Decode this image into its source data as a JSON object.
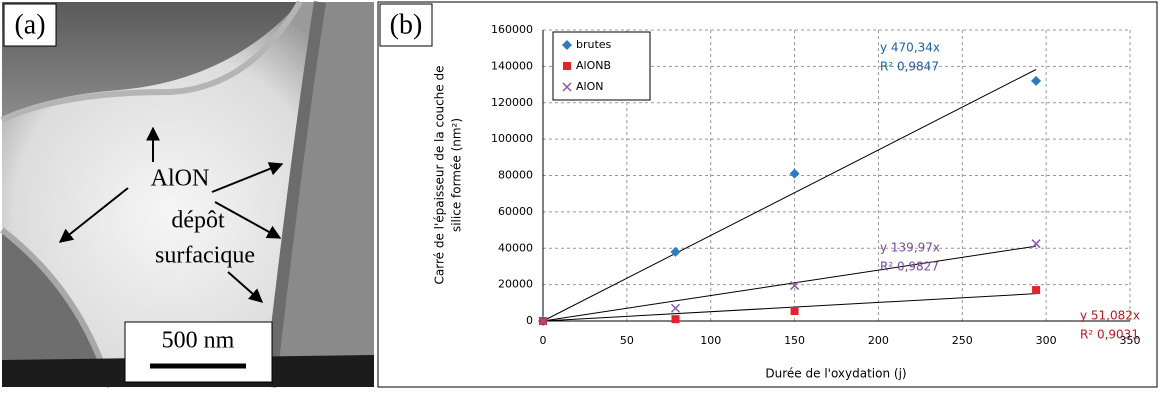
{
  "panel_a": {
    "label": "(a)",
    "annotations": [
      "AlON",
      "dépôt",
      "surfacique"
    ],
    "scale_bar": "500 nm"
  },
  "chart_data": {
    "type": "scatter",
    "label": "(b)",
    "x_label": "Durée de l'oxydation (j)",
    "y_label": [
      "Carré de l'épaisseur de la couche de",
      "silice formée (nm²)"
    ],
    "x": [
      0,
      79,
      150,
      294
    ],
    "series": [
      {
        "name": "brutes",
        "color": "#2e7bc4",
        "marker": "diamond",
        "values": [
          0,
          38000,
          81000,
          132000
        ]
      },
      {
        "name": "AlONB",
        "color": "#e8202a",
        "marker": "square",
        "values": [
          0,
          1000,
          5500,
          17000
        ]
      },
      {
        "name": "AlON",
        "color": "#8a5ab0",
        "marker": "x",
        "values": [
          0,
          7000,
          19500,
          42500
        ]
      }
    ],
    "trendlines": [
      {
        "equation": "y  470,34x",
        "r2": "R²  0,9847",
        "slope": 470.34,
        "color": "#1f5fa8"
      },
      {
        "equation": "y  51,082x",
        "r2": "R²  0,9031",
        "slope": 51.082,
        "color": "#c0181f"
      },
      {
        "equation": "y  139,97x",
        "r2": "R²  0,9827",
        "slope": 139.97,
        "color": "#7a4aa0"
      }
    ],
    "xlim": [
      0,
      350
    ],
    "xticks": [
      0,
      50,
      100,
      150,
      200,
      250,
      300,
      350
    ],
    "ylim": [
      0,
      160000
    ],
    "yticks": [
      0,
      20000,
      40000,
      60000,
      80000,
      100000,
      120000,
      140000,
      160000
    ],
    "grid": true
  }
}
